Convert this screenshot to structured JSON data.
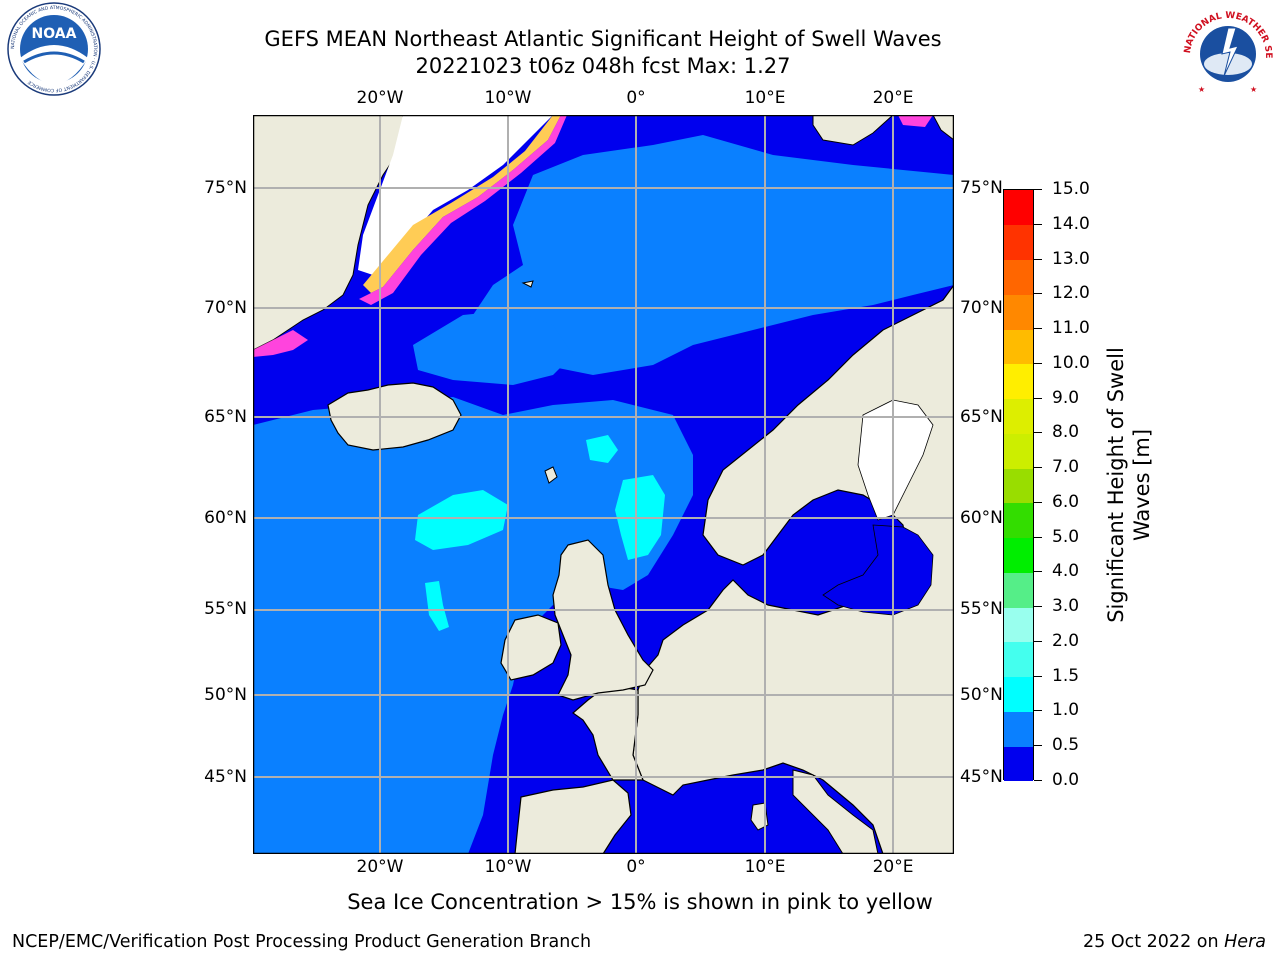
{
  "header": {
    "title_line1": "GEFS MEAN Northeast Atlantic Significant Height of Swell Waves",
    "title_line2": "20221023 t06z 048h fcst   Max: 1.27"
  },
  "logos": {
    "noaa": {
      "text": "NOAA",
      "ring_text": "NATIONAL OCEANIC AND ATMOSPHERIC ADMINISTRATION · U.S. DEPARTMENT OF COMMERCE"
    },
    "nws": {
      "ring_text": "NATIONAL WEATHER SERVICE"
    }
  },
  "map": {
    "lon_ticks": [
      "20°W",
      "10°W",
      "0°",
      "10°E",
      "20°E"
    ],
    "lat_ticks": [
      "75°N",
      "70°N",
      "65°N",
      "60°N",
      "55°N",
      "50°N",
      "45°N"
    ],
    "colors": {
      "land": "#ecebdc",
      "ice_pink": "#ff44dd",
      "ice_yellow": "#ffcc55",
      "ice_white": "#ffffff",
      "grid": "#b0b0b0",
      "coast": "#000000"
    }
  },
  "colorbar": {
    "title_line1": "Significant Height of Swell",
    "title_line2": "Waves [m]",
    "tick_labels": [
      "0.0",
      "0.5",
      "1.0",
      "1.5",
      "2.0",
      "3.0",
      "4.0",
      "5.0",
      "6.0",
      "7.0",
      "8.0",
      "9.0",
      "10.0",
      "11.0",
      "12.0",
      "13.0",
      "14.0",
      "15.0"
    ],
    "colors": [
      "#0000ee",
      "#0a80ff",
      "#00ffff",
      "#44ffee",
      "#99ffee",
      "#55ee88",
      "#00ee00",
      "#33dd00",
      "#99dd00",
      "#ccee00",
      "#ddee00",
      "#ffee00",
      "#ffbb00",
      "#ff8800",
      "#ff6600",
      "#ff3300",
      "#ff0000"
    ]
  },
  "footer": {
    "note": "Sea Ice Concentration > 15% is shown in pink to yellow",
    "left": "NCEP/EMC/Verification Post Processing Product Generation Branch",
    "right_date": "25 Oct 2022 on ",
    "right_machine": "Hera"
  }
}
